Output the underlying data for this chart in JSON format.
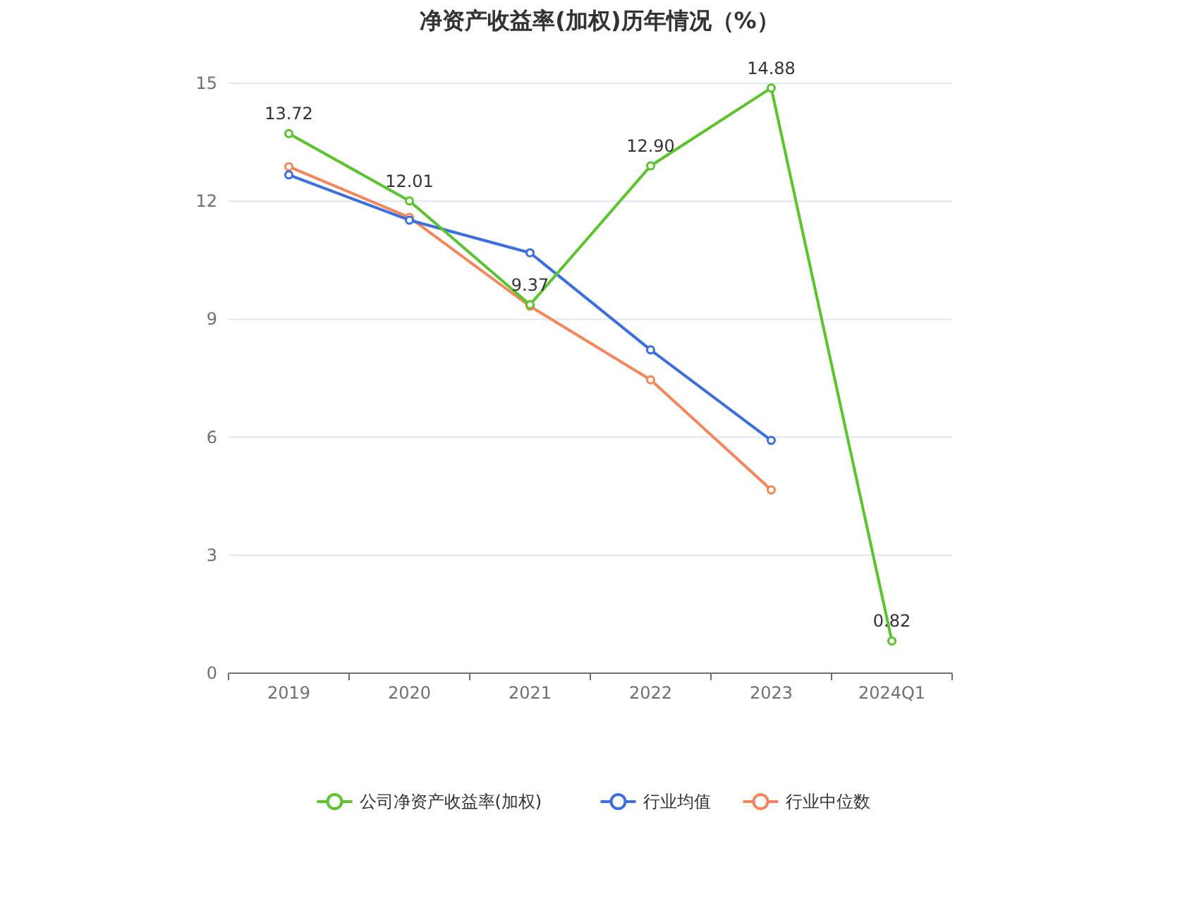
{
  "chart_data": {
    "type": "line",
    "title": "净资产收益率(加权)历年情况（%）",
    "categories": [
      "2019",
      "2020",
      "2021",
      "2022",
      "2023",
      "2024Q1"
    ],
    "series": [
      {
        "name": "公司净资产收益率(加权)",
        "color": "#5ac42c",
        "values": [
          13.72,
          12.01,
          9.37,
          12.9,
          14.88,
          0.82
        ],
        "value_labels": [
          "13.72",
          "12.01",
          "9.37",
          "12.90",
          "14.88",
          "0.82"
        ]
      },
      {
        "name": "行业均值",
        "color": "#3a6fe0",
        "values": [
          12.67,
          11.52,
          10.69,
          8.22,
          5.92,
          null
        ]
      },
      {
        "name": "行业中位数",
        "color": "#f5865a",
        "values": [
          12.88,
          11.59,
          9.33,
          7.46,
          4.66,
          null
        ]
      }
    ],
    "ylim": [
      0,
      15
    ],
    "yticks": [
      0,
      3,
      6,
      9,
      12,
      15
    ],
    "grid": "y",
    "legend": "bottom",
    "marker": "circle"
  }
}
